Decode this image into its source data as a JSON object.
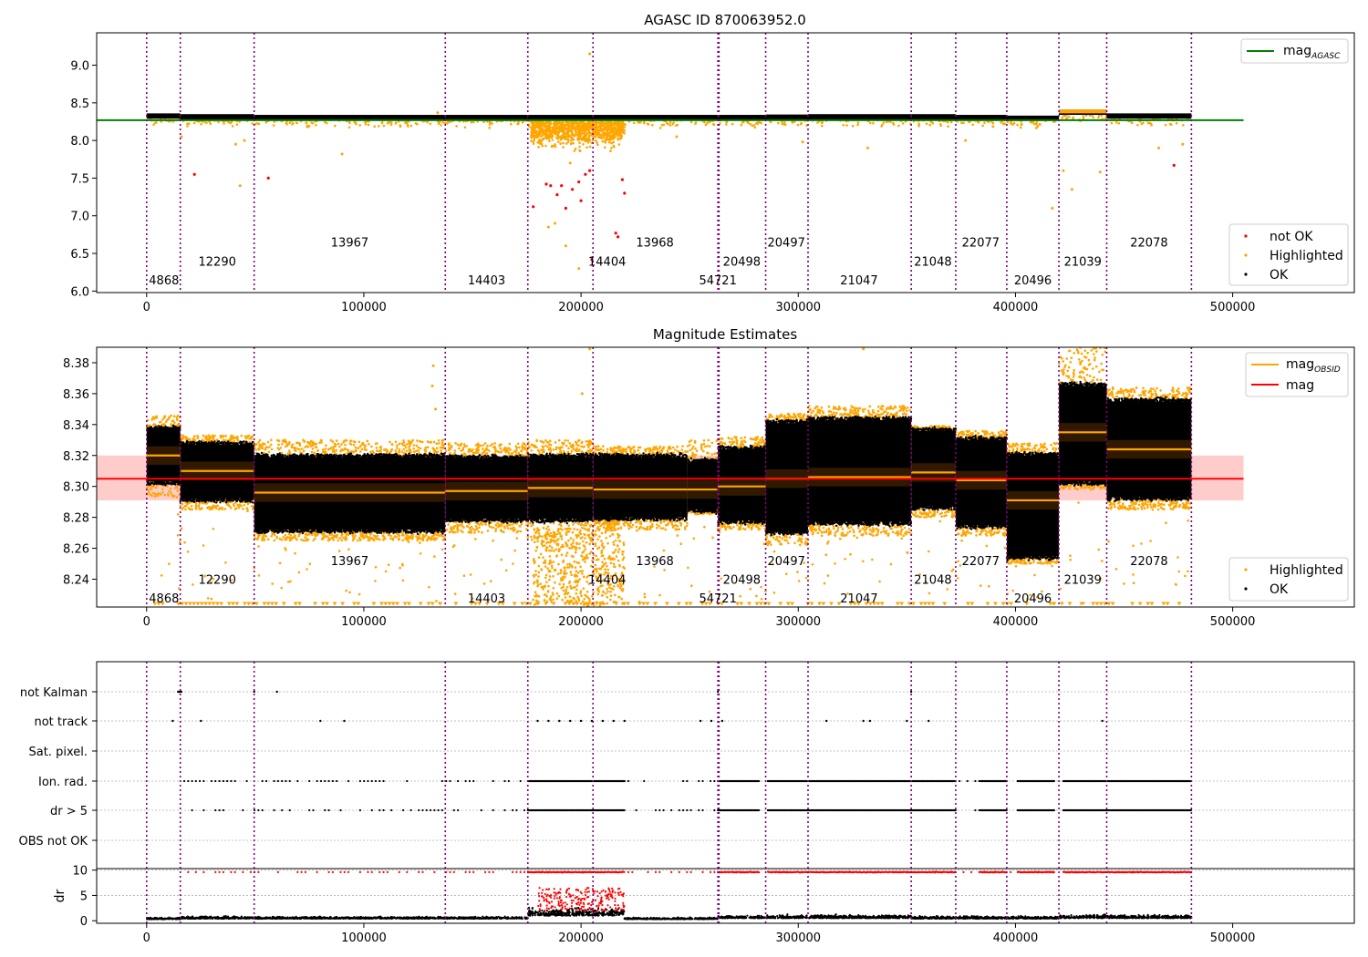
{
  "colors": {
    "ok": "#000000",
    "highlighted": "#ffa500",
    "not_ok": "#ff0000",
    "agasc_line": "#008000",
    "obs_boundary": "#800080",
    "obs_boundary_inner": "#0000ff",
    "mag_line": "#ff0000",
    "mag_band": "#ffcccc",
    "obsid_mag": "#ffa500"
  },
  "obs_boundaries": [
    0,
    15500,
    49500,
    137500,
    175500,
    205500,
    263000,
    263500,
    285000,
    304500,
    352000,
    372500,
    396000,
    420000,
    442000,
    481000
  ],
  "chart_data": [
    {
      "type": "scatter",
      "title": "AGASC ID 870063952.0",
      "xlim": [
        -23000,
        556000
      ],
      "ylim": [
        5.98,
        9.43
      ],
      "x_ticks": [
        0,
        100000,
        200000,
        300000,
        400000,
        500000
      ],
      "y_ticks": [
        6.0,
        6.5,
        7.0,
        7.5,
        8.0,
        8.5,
        9.0
      ],
      "legend_top": {
        "position": "upper right",
        "entries": [
          "mag_AGASC"
        ]
      },
      "legend_bottom": {
        "position": "lower right",
        "entries": [
          "not OK",
          "Highlighted",
          "OK"
        ]
      },
      "mag_agasc": 8.27,
      "segments": [
        {
          "x0": 0,
          "x1": 15500,
          "level": 8.32
        },
        {
          "x0": 15500,
          "x1": 49500,
          "level": 8.31
        },
        {
          "x0": 49500,
          "x1": 137500,
          "level": 8.3
        },
        {
          "x0": 137500,
          "x1": 175500,
          "level": 8.3
        },
        {
          "x0": 175500,
          "x1": 205500,
          "level": 8.3
        },
        {
          "x0": 205500,
          "x1": 263000,
          "level": 8.3
        },
        {
          "x0": 263000,
          "x1": 285000,
          "level": 8.3
        },
        {
          "x0": 285000,
          "x1": 304500,
          "level": 8.305
        },
        {
          "x0": 304500,
          "x1": 352000,
          "level": 8.31
        },
        {
          "x0": 352000,
          "x1": 372500,
          "level": 8.31
        },
        {
          "x0": 372500,
          "x1": 396000,
          "level": 8.3
        },
        {
          "x0": 396000,
          "x1": 420000,
          "level": 8.29
        },
        {
          "x0": 420000,
          "x1": 442000,
          "level": 8.37
        },
        {
          "x0": 442000,
          "x1": 481000,
          "level": 8.32
        }
      ],
      "obsid_labels": [
        {
          "text": "4868",
          "x": 8000,
          "y": 6.15
        },
        {
          "text": "12290",
          "x": 32500,
          "y": 6.4
        },
        {
          "text": "13967",
          "x": 93500,
          "y": 6.65
        },
        {
          "text": "14403",
          "x": 156500,
          "y": 6.15
        },
        {
          "text": "14404",
          "x": 212000,
          "y": 6.4
        },
        {
          "text": "13968",
          "x": 234000,
          "y": 6.65
        },
        {
          "text": "54721",
          "x": 263000,
          "y": 6.15
        },
        {
          "text": "20498",
          "x": 274000,
          "y": 6.4
        },
        {
          "text": "20497",
          "x": 294500,
          "y": 6.65
        },
        {
          "text": "21047",
          "x": 328000,
          "y": 6.15
        },
        {
          "text": "21048",
          "x": 362000,
          "y": 6.4
        },
        {
          "text": "22077",
          "x": 384000,
          "y": 6.65
        },
        {
          "text": "20496",
          "x": 408000,
          "y": 6.15
        },
        {
          "text": "21039",
          "x": 431000,
          "y": 6.4
        },
        {
          "text": "22078",
          "x": 461500,
          "y": 6.65
        }
      ],
      "not_ok_points": [
        [
          22000,
          7.55
        ],
        [
          56000,
          7.5
        ],
        [
          178000,
          7.12
        ],
        [
          184000,
          7.42
        ],
        [
          186000,
          7.4
        ],
        [
          189000,
          7.28
        ],
        [
          191000,
          7.4
        ],
        [
          193000,
          7.1
        ],
        [
          196000,
          7.35
        ],
        [
          199000,
          7.45
        ],
        [
          200000,
          7.2
        ],
        [
          202000,
          7.55
        ],
        [
          204000,
          7.6
        ],
        [
          205000,
          6.42
        ],
        [
          216000,
          6.77
        ],
        [
          217000,
          6.72
        ],
        [
          219000,
          7.48
        ],
        [
          220000,
          7.3
        ],
        [
          473000,
          7.67
        ]
      ],
      "highlight_outliers": [
        [
          16000,
          8.05
        ],
        [
          29000,
          8.25
        ],
        [
          41000,
          7.95
        ],
        [
          43000,
          7.4
        ],
        [
          45000,
          8.0
        ],
        [
          74000,
          8.18
        ],
        [
          90000,
          7.82
        ],
        [
          134000,
          8.37
        ],
        [
          185000,
          6.85
        ],
        [
          188000,
          6.9
        ],
        [
          193000,
          6.6
        ],
        [
          195000,
          7.7
        ],
        [
          199000,
          6.3
        ],
        [
          204000,
          9.15
        ],
        [
          212000,
          8.05
        ],
        [
          244000,
          8.05
        ],
        [
          302000,
          7.98
        ],
        [
          332000,
          7.9
        ],
        [
          377000,
          8.0
        ],
        [
          417000,
          7.1
        ],
        [
          422000,
          7.6
        ],
        [
          426000,
          7.35
        ],
        [
          439000,
          7.58
        ],
        [
          466000,
          7.9
        ],
        [
          477000,
          7.95
        ]
      ]
    },
    {
      "type": "scatter",
      "title": "Magnitude Estimates",
      "xlim": [
        -23000,
        556000
      ],
      "ylim": [
        8.222,
        8.39
      ],
      "x_ticks": [
        0,
        100000,
        200000,
        300000,
        400000,
        500000
      ],
      "y_ticks": [
        8.24,
        8.26,
        8.28,
        8.3,
        8.32,
        8.34,
        8.36,
        8.38
      ],
      "legend_top": {
        "position": "upper right",
        "entries": [
          "mag_OBSID",
          "mag"
        ]
      },
      "legend_bottom": {
        "position": "lower right",
        "entries": [
          "Highlighted",
          "OK"
        ]
      },
      "mag": 8.305,
      "mag_band": [
        8.291,
        8.32
      ],
      "obs": [
        {
          "x0": 0,
          "x1": 15500,
          "mean": 8.32,
          "lo": 8.303,
          "hi": 8.337,
          "ohi": 8.346,
          "olo": 8.293
        },
        {
          "x0": 15500,
          "x1": 49500,
          "mean": 8.31,
          "lo": 8.292,
          "hi": 8.327,
          "ohi": 8.333,
          "olo": 8.285
        },
        {
          "x0": 49500,
          "x1": 137500,
          "mean": 8.296,
          "lo": 8.272,
          "hi": 8.319,
          "ohi": 8.33,
          "olo": 8.265
        },
        {
          "x0": 137500,
          "x1": 175500,
          "mean": 8.297,
          "lo": 8.279,
          "hi": 8.318,
          "ohi": 8.328,
          "olo": 8.27
        },
        {
          "x0": 175500,
          "x1": 205500,
          "mean": 8.299,
          "lo": 8.279,
          "hi": 8.319,
          "ohi": 8.33,
          "olo": 8.26
        },
        {
          "x0": 205500,
          "x1": 249000,
          "mean": 8.298,
          "lo": 8.28,
          "hi": 8.319,
          "ohi": 8.326,
          "olo": 8.272
        },
        {
          "x0": 249000,
          "x1": 263000,
          "mean": 8.298,
          "lo": 8.285,
          "hi": 8.316,
          "ohi": 8.33,
          "olo": 8.282
        },
        {
          "x0": 263000,
          "x1": 285000,
          "mean": 8.3,
          "lo": 8.278,
          "hi": 8.324,
          "ohi": 8.332,
          "olo": 8.272
        },
        {
          "x0": 285000,
          "x1": 304500,
          "mean": 8.305,
          "lo": 8.271,
          "hi": 8.341,
          "ohi": 8.347,
          "olo": 8.262
        },
        {
          "x0": 304500,
          "x1": 352000,
          "mean": 8.306,
          "lo": 8.277,
          "hi": 8.343,
          "ohi": 8.352,
          "olo": 8.268
        },
        {
          "x0": 352000,
          "x1": 372500,
          "mean": 8.309,
          "lo": 8.287,
          "hi": 8.336,
          "ohi": 8.339,
          "olo": 8.28
        },
        {
          "x0": 372500,
          "x1": 396000,
          "mean": 8.304,
          "lo": 8.275,
          "hi": 8.33,
          "ohi": 8.336,
          "olo": 8.268
        },
        {
          "x0": 396000,
          "x1": 420000,
          "mean": 8.291,
          "lo": 8.255,
          "hi": 8.32,
          "ohi": 8.328,
          "olo": 8.25
        },
        {
          "x0": 420000,
          "x1": 442000,
          "mean": 8.335,
          "lo": 8.303,
          "hi": 8.365,
          "ohi": 8.39,
          "olo": 8.298
        },
        {
          "x0": 442000,
          "x1": 481000,
          "mean": 8.324,
          "lo": 8.293,
          "hi": 8.355,
          "ohi": 8.364,
          "olo": 8.285
        }
      ],
      "obsid_labels": [
        {
          "text": "4868",
          "x": 8000,
          "y": 8.228
        },
        {
          "text": "12290",
          "x": 32500,
          "y": 8.24
        },
        {
          "text": "13967",
          "x": 93500,
          "y": 8.252
        },
        {
          "text": "14403",
          "x": 156500,
          "y": 8.228
        },
        {
          "text": "14404",
          "x": 212000,
          "y": 8.24
        },
        {
          "text": "13968",
          "x": 234000,
          "y": 8.252
        },
        {
          "text": "54721",
          "x": 263000,
          "y": 8.228
        },
        {
          "text": "20498",
          "x": 274000,
          "y": 8.24
        },
        {
          "text": "20497",
          "x": 294500,
          "y": 8.252
        },
        {
          "text": "21047",
          "x": 328000,
          "y": 8.228
        },
        {
          "text": "21048",
          "x": 362000,
          "y": 8.24
        },
        {
          "text": "22077",
          "x": 384000,
          "y": 8.252
        },
        {
          "text": "20496",
          "x": 408000,
          "y": 8.228
        },
        {
          "text": "21039",
          "x": 431000,
          "y": 8.24
        },
        {
          "text": "22078",
          "x": 461500,
          "y": 8.252
        }
      ],
      "highlight_spikes": [
        [
          131500,
          8.365
        ],
        [
          132000,
          8.378
        ],
        [
          133000,
          8.35
        ],
        [
          200500,
          8.36
        ],
        [
          204000,
          8.389
        ],
        [
          330000,
          8.389
        ]
      ]
    },
    {
      "type": "scatter",
      "title": "",
      "xlim": [
        -23000,
        556000
      ],
      "x_ticks": [
        0,
        100000,
        200000,
        300000,
        400000,
        500000
      ],
      "flag_categories": [
        "not Kalman",
        "not track",
        "Sat. pixel.",
        "Ion. rad.",
        "dr > 5",
        "OBS not OK"
      ],
      "dr_ylabel": "dr",
      "dr_ylim": [
        -0.5,
        10.3
      ],
      "dr_ticks": [
        0,
        5,
        10
      ],
      "dr_bands": [
        {
          "x0": 0,
          "x1": 15500,
          "base": 0.3,
          "spread": 0.4
        },
        {
          "x0": 15500,
          "x1": 49500,
          "base": 0.4,
          "spread": 0.6
        },
        {
          "x0": 49500,
          "x1": 137500,
          "base": 0.4,
          "spread": 0.5
        },
        {
          "x0": 137500,
          "x1": 175500,
          "base": 0.4,
          "spread": 0.5
        },
        {
          "x0": 175500,
          "x1": 220000,
          "base": 1.0,
          "spread": 1.8
        },
        {
          "x0": 220000,
          "x1": 263000,
          "base": 0.3,
          "spread": 0.4
        },
        {
          "x0": 263000,
          "x1": 285000,
          "base": 0.5,
          "spread": 0.6
        },
        {
          "x0": 285000,
          "x1": 352000,
          "base": 0.5,
          "spread": 0.8
        },
        {
          "x0": 352000,
          "x1": 420000,
          "base": 0.4,
          "spread": 0.6
        },
        {
          "x0": 420000,
          "x1": 481000,
          "base": 0.5,
          "spread": 0.8
        }
      ],
      "dense_flag_ranges": [
        [
          175500,
          220000
        ],
        [
          263000,
          282000
        ],
        [
          286000,
          372500
        ],
        [
          384000,
          396000
        ],
        [
          401000,
          418000
        ],
        [
          422000,
          481000
        ]
      ],
      "sparse_flag_ranges": [
        [
          15500,
          175500
        ],
        [
          220000,
          263000
        ],
        [
          372500,
          384000
        ],
        [
          396000,
          401000
        ]
      ],
      "not_track_points": [
        12000,
        25000,
        80000,
        91000,
        180000,
        185000,
        190000,
        195000,
        200000,
        205000,
        210000,
        215000,
        220000,
        255000,
        260000,
        265000,
        313000,
        330000,
        333000,
        350000,
        360000,
        440000
      ],
      "not_kalman_points": [
        14500,
        15000,
        15500,
        16000,
        49500,
        60000,
        263000,
        352000
      ]
    }
  ]
}
